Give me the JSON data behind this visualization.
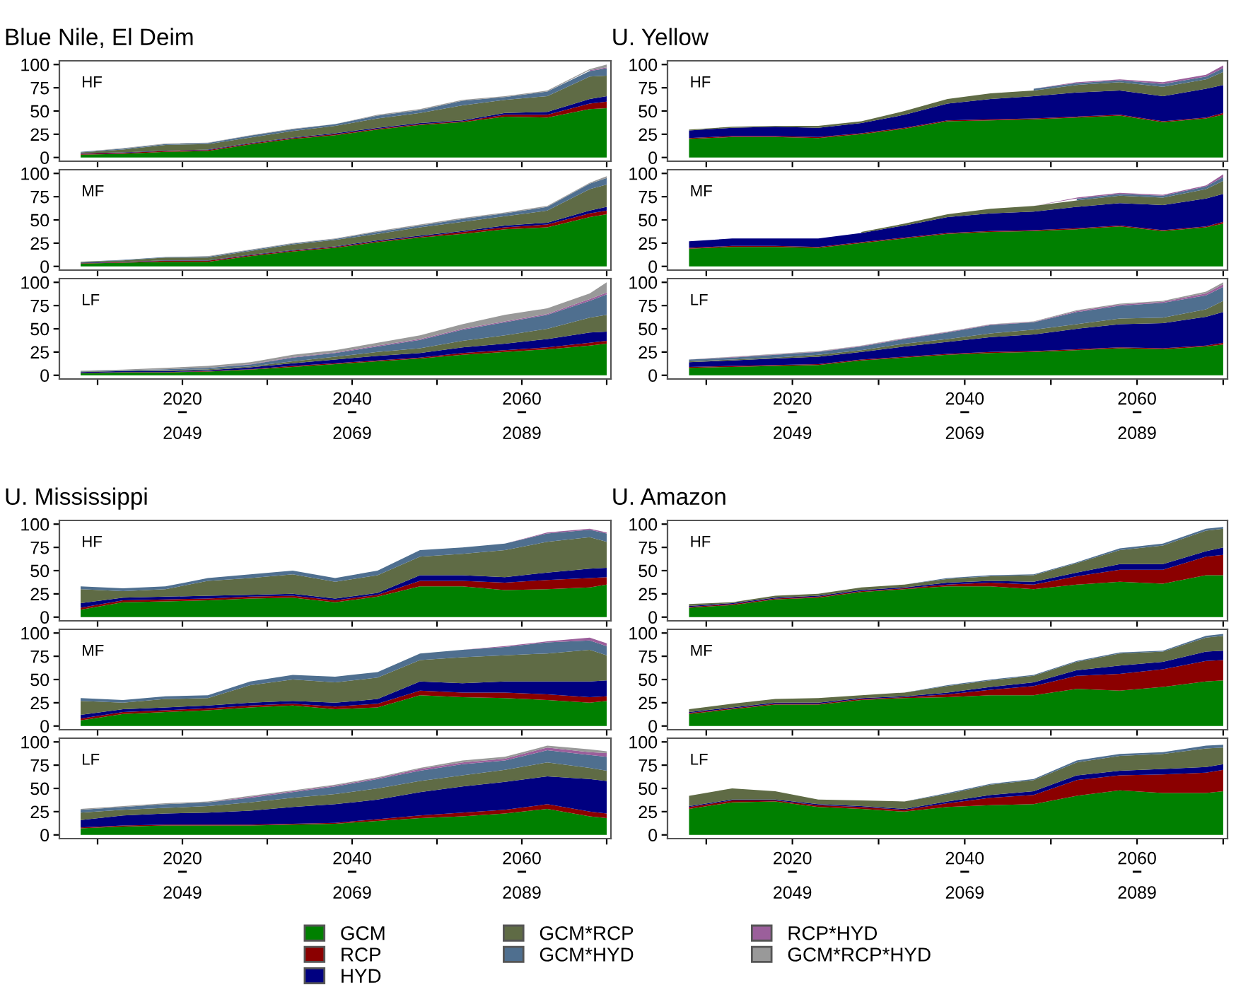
{
  "chart_data": [
    {
      "type": "area",
      "stacked": true,
      "title": "Blue Nile, El Deim",
      "annotations": [
        "HF"
      ],
      "tick_labels": "y",
      "legend": false,
      "xlim": [
        2005.5,
        2070.5
      ],
      "ylim": [
        -4,
        104
      ],
      "yticks": [
        0,
        25,
        50,
        75,
        100
      ],
      "xticks": [
        {
          "value": 2010,
          "label": null
        },
        2020,
        {
          "value": 2030,
          "label": null
        },
        2040,
        {
          "value": 2050,
          "label": null
        },
        2060,
        {
          "value": 2070,
          "label": null
        }
      ],
      "x": [
        2008,
        2013,
        2018,
        2023,
        2028,
        2033,
        2038,
        2043,
        2048,
        2053,
        2058,
        2063,
        2068,
        2070
      ],
      "series": [
        {
          "color": "#008000",
          "values": [
            3,
            4,
            6,
            7,
            14,
            20,
            24,
            30,
            35,
            38,
            44,
            43,
            52,
            53
          ]
        },
        {
          "color": "#8b0000",
          "values": [
            1,
            1,
            1,
            1,
            1,
            1,
            1,
            1,
            1,
            1,
            2,
            3,
            6,
            7
          ]
        },
        {
          "color": "#000080",
          "values": [
            0.5,
            0.5,
            0.5,
            0.5,
            0.5,
            0.5,
            1,
            1,
            1,
            1,
            2,
            3,
            5,
            6
          ]
        },
        {
          "color": "#5f6b45",
          "values": [
            1,
            3,
            6,
            6,
            6,
            7,
            8,
            10,
            11,
            16,
            14,
            17,
            24,
            22
          ]
        },
        {
          "color": "#4f6f8f",
          "values": [
            0.5,
            1,
            1,
            1,
            2,
            2,
            2,
            3,
            3,
            5,
            3,
            5,
            6,
            8
          ]
        },
        {
          "color": "#9b5f9b",
          "values": [
            null,
            null,
            null,
            null,
            null,
            null,
            null,
            null,
            null,
            null,
            null,
            null,
            1,
            1
          ]
        },
        {
          "color": "#999999",
          "values": [
            0,
            0.5,
            0.5,
            0.5,
            0.5,
            0.5,
            0,
            1,
            1,
            1,
            1,
            1,
            1,
            3
          ]
        }
      ]
    },
    {
      "type": "area",
      "stacked": true,
      "annotations": [
        "MF"
      ],
      "tick_labels": "y",
      "legend": false,
      "xlim": [
        2005.5,
        2070.5
      ],
      "ylim": [
        -4,
        104
      ],
      "yticks": [
        0,
        25,
        50,
        75,
        100
      ],
      "xticks": [
        {
          "value": 2010,
          "label": null
        },
        2020,
        {
          "value": 2030,
          "label": null
        },
        2040,
        {
          "value": 2050,
          "label": null
        },
        2060,
        {
          "value": 2070,
          "label": null
        }
      ],
      "x": [
        2008,
        2013,
        2018,
        2023,
        2028,
        2033,
        2038,
        2043,
        2048,
        2053,
        2058,
        2063,
        2068,
        2070
      ],
      "series": [
        {
          "color": "#008000",
          "values": [
            3,
            4,
            5,
            5,
            11,
            16,
            20,
            26,
            31,
            35,
            40,
            42,
            53,
            56
          ]
        },
        {
          "color": "#8b0000",
          "values": [
            0.5,
            0.5,
            1,
            1,
            1,
            1,
            1,
            1,
            1,
            2,
            2,
            3,
            4,
            4
          ]
        },
        {
          "color": "#000080",
          "values": [
            0.5,
            0.5,
            0.5,
            0.5,
            0.5,
            0.5,
            0.5,
            1,
            1,
            1,
            2,
            2,
            3,
            4
          ]
        },
        {
          "color": "#5f6b45",
          "values": [
            1,
            1.5,
            3,
            3,
            4,
            6,
            7,
            7,
            9,
            10,
            10,
            13,
            23,
            24
          ]
        },
        {
          "color": "#4f6f8f",
          "values": [
            0,
            0.5,
            0.5,
            1,
            1,
            1,
            1,
            2,
            2,
            3,
            3,
            4,
            6,
            7
          ]
        },
        {
          "color": "#9b5f9b",
          "values": [
            null,
            null,
            null,
            null,
            null,
            null,
            null,
            null,
            null,
            null,
            null,
            null,
            null,
            null
          ]
        },
        {
          "color": "#999999",
          "values": [
            0,
            0,
            0,
            0.5,
            0.5,
            0.5,
            0.5,
            1,
            1,
            1,
            1,
            1,
            1,
            2
          ]
        }
      ]
    },
    {
      "type": "area",
      "stacked": true,
      "annotations": [
        "LF"
      ],
      "legend": false,
      "xlim": [
        2005.5,
        2070.5
      ],
      "ylim": [
        -4,
        104
      ],
      "yticks": [
        0,
        25,
        50,
        75,
        100
      ],
      "xticks": [
        {
          "value": 2010,
          "label": null
        },
        2020,
        {
          "value": 2030,
          "label": null
        },
        2040,
        {
          "value": 2050,
          "label": null
        },
        2060,
        {
          "value": 2070,
          "label": null
        }
      ],
      "x2lim": [
        2034.5,
        2099.5
      ],
      "x2ticks": [
        2049,
        2069,
        2089
      ],
      "x": [
        2008,
        2013,
        2018,
        2023,
        2028,
        2033,
        2038,
        2043,
        2048,
        2053,
        2058,
        2063,
        2068,
        2070
      ],
      "series": [
        {
          "color": "#008000",
          "values": [
            2,
            3,
            3,
            4,
            6,
            9,
            12,
            15,
            18,
            22,
            25,
            28,
            32,
            34
          ]
        },
        {
          "color": "#8b0000",
          "values": [
            0.5,
            0.5,
            0.5,
            0.5,
            0.5,
            1,
            1,
            1,
            1,
            2,
            2,
            2,
            3,
            3
          ]
        },
        {
          "color": "#000080",
          "values": [
            1,
            1,
            1,
            1,
            2,
            3,
            4,
            5,
            5,
            6,
            7,
            9,
            11,
            10
          ]
        },
        {
          "color": "#5f6b45",
          "values": [
            0.5,
            0.5,
            1,
            1,
            1,
            2,
            3,
            4,
            5,
            7,
            9,
            11,
            16,
            18
          ]
        },
        {
          "color": "#4f6f8f",
          "values": [
            0.5,
            0.5,
            1,
            1.5,
            2,
            4,
            4,
            6,
            9,
            12,
            14,
            15,
            18,
            22
          ]
        },
        {
          "color": "#9b5f9b",
          "values": [
            0,
            0,
            0,
            0,
            0.5,
            0.5,
            0.5,
            1,
            1,
            1,
            1,
            1,
            2,
            2
          ]
        },
        {
          "color": "#999999",
          "values": [
            0.5,
            0.5,
            1.5,
            2,
            2,
            2.5,
            2.5,
            3,
            4,
            5,
            7,
            6,
            6,
            11
          ]
        }
      ]
    },
    {
      "type": "area",
      "stacked": true,
      "title": "U. Yellow",
      "annotations": [
        "HF"
      ],
      "tick_labels": "y",
      "legend": false,
      "xlim": [
        2005.5,
        2070.5
      ],
      "ylim": [
        -4,
        104
      ],
      "yticks": [
        0,
        25,
        50,
        75,
        100
      ],
      "xticks": [
        {
          "value": 2010,
          "label": null
        },
        2020,
        {
          "value": 2030,
          "label": null
        },
        2040,
        {
          "value": 2050,
          "label": null
        },
        2060,
        {
          "value": 2070,
          "label": null
        }
      ],
      "x": [
        2008,
        2013,
        2018,
        2023,
        2028,
        2033,
        2038,
        2043,
        2048,
        2053,
        2058,
        2063,
        2068,
        2070
      ],
      "series": [
        {
          "color": "#008000",
          "values": [
            20,
            22,
            22,
            21,
            25,
            31,
            39,
            40,
            41,
            43,
            45,
            38,
            42,
            46
          ]
        },
        {
          "color": "#8b0000",
          "values": [
            1,
            1,
            1,
            1,
            1,
            1,
            1,
            1,
            1,
            1,
            1,
            1,
            1,
            2
          ]
        },
        {
          "color": "#000080",
          "values": [
            8,
            9,
            10,
            10,
            11,
            14,
            18,
            22,
            24,
            26,
            26,
            27,
            31,
            30
          ]
        },
        {
          "color": "#5f6b45",
          "values": [
            1,
            1,
            1,
            2,
            2,
            4,
            5,
            6,
            6,
            8,
            9,
            10,
            10,
            14
          ]
        },
        {
          "color": "#4f6f8f",
          "values": [
            null,
            null,
            null,
            null,
            null,
            null,
            null,
            null,
            2,
            2,
            2,
            3,
            3,
            4
          ]
        },
        {
          "color": "#9b5f9b",
          "values": [
            0,
            0,
            0,
            0,
            0,
            0,
            0,
            0,
            0,
            1,
            1,
            2,
            2,
            3
          ]
        },
        {
          "color": "#999999",
          "values": [
            null,
            null,
            null,
            null,
            null,
            null,
            null,
            null,
            null,
            null,
            null,
            null,
            null,
            null
          ]
        }
      ]
    },
    {
      "type": "area",
      "stacked": true,
      "annotations": [
        "MF"
      ],
      "tick_labels": "y",
      "legend": false,
      "xlim": [
        2005.5,
        2070.5
      ],
      "ylim": [
        -4,
        104
      ],
      "yticks": [
        0,
        25,
        50,
        75,
        100
      ],
      "xticks": [
        {
          "value": 2010,
          "label": null
        },
        2020,
        {
          "value": 2030,
          "label": null
        },
        2040,
        {
          "value": 2050,
          "label": null
        },
        2060,
        {
          "value": 2070,
          "label": null
        }
      ],
      "x": [
        2008,
        2013,
        2018,
        2023,
        2028,
        2033,
        2038,
        2043,
        2048,
        2053,
        2058,
        2063,
        2068,
        2070
      ],
      "series": [
        {
          "color": "#008000",
          "values": [
            19,
            21,
            21,
            20,
            25,
            30,
            35,
            37,
            38,
            40,
            43,
            38,
            42,
            46
          ]
        },
        {
          "color": "#8b0000",
          "values": [
            1,
            1,
            1,
            1,
            1,
            1,
            1,
            1,
            1,
            1,
            1,
            1,
            1,
            2
          ]
        },
        {
          "color": "#000080",
          "values": [
            7,
            8,
            8,
            9,
            10,
            13,
            17,
            19,
            20,
            23,
            24,
            27,
            30,
            30
          ]
        },
        {
          "color": "#5f6b45",
          "values": [
            null,
            null,
            null,
            null,
            1,
            2,
            3,
            5,
            6,
            7,
            8,
            8,
            10,
            14
          ]
        },
        {
          "color": "#4f6f8f",
          "values": [
            null,
            null,
            null,
            null,
            null,
            null,
            null,
            null,
            null,
            2,
            2,
            2,
            3,
            4
          ]
        },
        {
          "color": "#9b5f9b",
          "values": [
            0,
            0,
            0,
            0,
            0,
            0,
            0,
            0,
            0,
            1,
            1,
            1,
            1,
            3
          ]
        },
        {
          "color": "#999999",
          "values": [
            null,
            null,
            null,
            null,
            null,
            null,
            null,
            null,
            null,
            null,
            null,
            null,
            null,
            null
          ]
        }
      ]
    },
    {
      "type": "area",
      "stacked": true,
      "annotations": [
        "LF"
      ],
      "legend": false,
      "xlim": [
        2005.5,
        2070.5
      ],
      "ylim": [
        -4,
        104
      ],
      "yticks": [
        0,
        25,
        50,
        75,
        100
      ],
      "xticks": [
        {
          "value": 2010,
          "label": null
        },
        2020,
        {
          "value": 2030,
          "label": null
        },
        2040,
        {
          "value": 2050,
          "label": null
        },
        2060,
        {
          "value": 2070,
          "label": null
        }
      ],
      "x2lim": [
        2034.5,
        2099.5
      ],
      "x2ticks": [
        2049,
        2069,
        2089
      ],
      "x": [
        2008,
        2013,
        2018,
        2023,
        2028,
        2033,
        2038,
        2043,
        2048,
        2053,
        2058,
        2063,
        2068,
        2070
      ],
      "series": [
        {
          "color": "#008000",
          "values": [
            8,
            9,
            10,
            11,
            16,
            19,
            22,
            24,
            25,
            27,
            29,
            28,
            31,
            33
          ]
        },
        {
          "color": "#8b0000",
          "values": [
            1,
            1,
            1,
            1,
            1,
            1,
            1,
            1,
            1,
            1,
            1,
            1,
            1,
            2
          ]
        },
        {
          "color": "#000080",
          "values": [
            5,
            6,
            7,
            8,
            8,
            11,
            13,
            16,
            18,
            22,
            25,
            27,
            31,
            33
          ]
        },
        {
          "color": "#5f6b45",
          "values": [
            1,
            1,
            1,
            2,
            2,
            3,
            3,
            4,
            5,
            5,
            6,
            6,
            8,
            12
          ]
        },
        {
          "color": "#4f6f8f",
          "values": [
            2,
            2,
            3,
            3,
            4,
            5,
            7,
            9,
            8,
            13,
            14,
            16,
            15,
            15
          ]
        },
        {
          "color": "#9b5f9b",
          "values": [
            0,
            0.5,
            0.5,
            0.5,
            0.5,
            0.5,
            0.5,
            0.5,
            0.5,
            1,
            1,
            1,
            2,
            3
          ]
        },
        {
          "color": "#999999",
          "values": [
            0,
            0.5,
            0.5,
            0.5,
            0.5,
            0.5,
            0.5,
            0.5,
            0.5,
            1,
            1,
            1,
            2,
            2
          ]
        }
      ]
    },
    {
      "type": "area",
      "stacked": true,
      "title": "U. Mississippi",
      "annotations": [
        "HF"
      ],
      "tick_labels": "y",
      "legend": false,
      "xlim": [
        2005.5,
        2070.5
      ],
      "ylim": [
        -4,
        104
      ],
      "yticks": [
        0,
        25,
        50,
        75,
        100
      ],
      "xticks": [
        {
          "value": 2010,
          "label": null
        },
        2020,
        {
          "value": 2030,
          "label": null
        },
        2040,
        {
          "value": 2050,
          "label": null
        },
        2060,
        {
          "value": 2070,
          "label": null
        }
      ],
      "x": [
        2008,
        2013,
        2018,
        2023,
        2028,
        2033,
        2038,
        2043,
        2048,
        2053,
        2058,
        2063,
        2068,
        2070
      ],
      "series": [
        {
          "color": "#008000",
          "values": [
            8,
            16,
            17,
            18,
            20,
            21,
            16,
            22,
            33,
            33,
            29,
            30,
            32,
            35
          ]
        },
        {
          "color": "#8b0000",
          "values": [
            2,
            2,
            2,
            2,
            2,
            2,
            2,
            2,
            6,
            6,
            8,
            10,
            10,
            8
          ]
        },
        {
          "color": "#000080",
          "values": [
            5,
            3,
            3,
            3,
            2,
            2,
            2,
            2,
            6,
            6,
            6,
            8,
            10,
            10
          ]
        },
        {
          "color": "#5f6b45",
          "values": [
            15,
            7,
            8,
            16,
            18,
            21,
            18,
            19,
            20,
            23,
            29,
            33,
            34,
            28
          ]
        },
        {
          "color": "#4f6f8f",
          "values": [
            3,
            3,
            3,
            3,
            4,
            4,
            4,
            5,
            7,
            7,
            7,
            9,
            8,
            9
          ]
        },
        {
          "color": "#9b5f9b",
          "values": [
            0,
            0,
            0,
            0,
            0,
            0,
            0,
            0,
            0,
            0,
            0,
            1,
            1,
            1
          ]
        },
        {
          "color": "#999999",
          "values": [
            null,
            null,
            null,
            null,
            null,
            null,
            null,
            null,
            null,
            null,
            null,
            null,
            null,
            null
          ]
        }
      ]
    },
    {
      "type": "area",
      "stacked": true,
      "annotations": [
        "MF"
      ],
      "tick_labels": "y",
      "legend": false,
      "xlim": [
        2005.5,
        2070.5
      ],
      "ylim": [
        -4,
        104
      ],
      "yticks": [
        0,
        25,
        50,
        75,
        100
      ],
      "xticks": [
        {
          "value": 2010,
          "label": null
        },
        2020,
        {
          "value": 2030,
          "label": null
        },
        2040,
        {
          "value": 2050,
          "label": null
        },
        2060,
        {
          "value": 2070,
          "label": null
        }
      ],
      "x": [
        2008,
        2013,
        2018,
        2023,
        2028,
        2033,
        2038,
        2043,
        2048,
        2053,
        2058,
        2063,
        2068,
        2070
      ],
      "series": [
        {
          "color": "#008000",
          "values": [
            6,
            13,
            15,
            17,
            20,
            22,
            18,
            20,
            33,
            31,
            30,
            28,
            25,
            27
          ]
        },
        {
          "color": "#8b0000",
          "values": [
            2,
            2,
            2,
            2,
            2,
            2,
            3,
            4,
            5,
            5,
            6,
            6,
            6,
            5
          ]
        },
        {
          "color": "#000080",
          "values": [
            4,
            3,
            3,
            3,
            3,
            3,
            4,
            5,
            10,
            10,
            12,
            14,
            17,
            17
          ]
        },
        {
          "color": "#5f6b45",
          "values": [
            15,
            7,
            9,
            8,
            19,
            23,
            22,
            23,
            23,
            28,
            28,
            30,
            34,
            27
          ]
        },
        {
          "color": "#4f6f8f",
          "values": [
            3,
            3,
            3,
            3,
            4,
            5,
            6,
            6,
            7,
            8,
            9,
            12,
            10,
            10
          ]
        },
        {
          "color": "#9b5f9b",
          "values": [
            0,
            0,
            0,
            0,
            0,
            0,
            0,
            0,
            0,
            0,
            1,
            1,
            3,
            3
          ]
        },
        {
          "color": "#999999",
          "values": [
            null,
            null,
            null,
            null,
            null,
            null,
            null,
            null,
            null,
            null,
            null,
            null,
            null,
            null
          ]
        }
      ]
    },
    {
      "type": "area",
      "stacked": true,
      "annotations": [
        "LF"
      ],
      "legend": false,
      "xlim": [
        2005.5,
        2070.5
      ],
      "ylim": [
        -4,
        104
      ],
      "yticks": [
        0,
        25,
        50,
        75,
        100
      ],
      "xticks": [
        {
          "value": 2010,
          "label": null
        },
        2020,
        {
          "value": 2030,
          "label": null
        },
        2040,
        {
          "value": 2050,
          "label": null
        },
        2060,
        {
          "value": 2070,
          "label": null
        }
      ],
      "x2lim": [
        2034.5,
        2099.5
      ],
      "x2ticks": [
        2049,
        2069,
        2089
      ],
      "x": [
        2008,
        2013,
        2018,
        2023,
        2028,
        2033,
        2038,
        2043,
        2048,
        2053,
        2058,
        2063,
        2068,
        2070
      ],
      "series": [
        {
          "color": "#008000",
          "values": [
            7,
            9,
            10,
            10,
            10,
            11,
            12,
            15,
            18,
            20,
            23,
            28,
            20,
            18
          ]
        },
        {
          "color": "#8b0000",
          "values": [
            1,
            1,
            1,
            1,
            1,
            1,
            1,
            2,
            3,
            4,
            4,
            5,
            5,
            5
          ]
        },
        {
          "color": "#000080",
          "values": [
            8,
            11,
            12,
            13,
            15,
            18,
            20,
            21,
            25,
            28,
            30,
            30,
            35,
            35
          ]
        },
        {
          "color": "#5f6b45",
          "values": [
            8,
            6,
            6,
            7,
            9,
            10,
            11,
            12,
            12,
            12,
            13,
            15,
            12,
            11
          ]
        },
        {
          "color": "#4f6f8f",
          "values": [
            3,
            3,
            4,
            4,
            5,
            6,
            8,
            10,
            11,
            12,
            10,
            13,
            14,
            15
          ]
        },
        {
          "color": "#9b5f9b",
          "values": [
            0,
            0,
            0,
            0,
            1,
            1,
            1,
            1,
            2,
            2,
            2,
            3,
            3,
            4
          ]
        },
        {
          "color": "#999999",
          "values": [
            1,
            1,
            1,
            1,
            1,
            1,
            1,
            1,
            1,
            2,
            2,
            2,
            3,
            2
          ]
        }
      ]
    },
    {
      "type": "area",
      "stacked": true,
      "title": "U. Amazon",
      "annotations": [
        "HF"
      ],
      "tick_labels": "y",
      "legend": false,
      "xlim": [
        2005.5,
        2070.5
      ],
      "ylim": [
        -4,
        104
      ],
      "yticks": [
        0,
        25,
        50,
        75,
        100
      ],
      "xticks": [
        {
          "value": 2010,
          "label": null
        },
        2020,
        {
          "value": 2030,
          "label": null
        },
        2040,
        {
          "value": 2050,
          "label": null
        },
        2060,
        {
          "value": 2070,
          "label": null
        }
      ],
      "x": [
        2008,
        2013,
        2018,
        2023,
        2028,
        2033,
        2038,
        2043,
        2048,
        2053,
        2058,
        2063,
        2068,
        2070
      ],
      "series": [
        {
          "color": "#008000",
          "values": [
            10,
            13,
            19,
            21,
            27,
            30,
            33,
            33,
            30,
            35,
            38,
            36,
            45,
            45
          ]
        },
        {
          "color": "#8b0000",
          "values": [
            1,
            1,
            1,
            1,
            1,
            1,
            2,
            4,
            5,
            9,
            13,
            15,
            20,
            22
          ]
        },
        {
          "color": "#000080",
          "values": [
            1,
            1,
            1,
            1,
            1,
            1,
            2,
            2,
            3,
            4,
            6,
            6,
            6,
            8
          ]
        },
        {
          "color": "#5f6b45",
          "values": [
            2,
            1,
            2,
            2,
            3,
            3,
            4,
            5,
            7,
            10,
            15,
            20,
            22,
            20
          ]
        },
        {
          "color": "#4f6f8f",
          "values": [
            0,
            0,
            0,
            0,
            0,
            0,
            1,
            1,
            1,
            1,
            2,
            2,
            2,
            2
          ]
        },
        {
          "color": "#9b5f9b",
          "values": [
            null,
            null,
            null,
            null,
            null,
            null,
            null,
            null,
            null,
            null,
            null,
            null,
            null,
            null
          ]
        },
        {
          "color": "#999999",
          "values": [
            null,
            null,
            null,
            null,
            null,
            null,
            null,
            null,
            null,
            null,
            null,
            null,
            null,
            null
          ]
        }
      ]
    },
    {
      "type": "area",
      "stacked": true,
      "annotations": [
        "MF"
      ],
      "tick_labels": "y",
      "legend": false,
      "xlim": [
        2005.5,
        2070.5
      ],
      "ylim": [
        -4,
        104
      ],
      "yticks": [
        0,
        25,
        50,
        75,
        100
      ],
      "xticks": [
        {
          "value": 2010,
          "label": null
        },
        2020,
        {
          "value": 2030,
          "label": null
        },
        2040,
        {
          "value": 2050,
          "label": null
        },
        2060,
        {
          "value": 2070,
          "label": null
        }
      ],
      "x": [
        2008,
        2013,
        2018,
        2023,
        2028,
        2033,
        2038,
        2043,
        2048,
        2053,
        2058,
        2063,
        2068,
        2070
      ],
      "series": [
        {
          "color": "#008000",
          "values": [
            13,
            18,
            23,
            23,
            28,
            30,
            31,
            33,
            33,
            40,
            38,
            42,
            48,
            49
          ]
        },
        {
          "color": "#8b0000",
          "values": [
            1,
            1,
            1,
            1,
            1,
            1,
            3,
            6,
            10,
            14,
            18,
            19,
            22,
            22
          ]
        },
        {
          "color": "#000080",
          "values": [
            1,
            1,
            1,
            1,
            1,
            1,
            2,
            3,
            4,
            6,
            9,
            8,
            10,
            10
          ]
        },
        {
          "color": "#5f6b45",
          "values": [
            3,
            4,
            4,
            5,
            3,
            4,
            7,
            7,
            7,
            9,
            13,
            11,
            15,
            16
          ]
        },
        {
          "color": "#4f6f8f",
          "values": [
            0,
            0,
            0,
            0,
            0,
            0,
            1,
            1,
            1,
            1,
            1,
            1,
            2,
            2
          ]
        },
        {
          "color": "#9b5f9b",
          "values": [
            null,
            null,
            null,
            null,
            null,
            null,
            null,
            null,
            null,
            null,
            null,
            null,
            null,
            null
          ]
        },
        {
          "color": "#999999",
          "values": [
            null,
            null,
            null,
            null,
            null,
            null,
            null,
            null,
            null,
            null,
            null,
            null,
            null,
            null
          ]
        }
      ]
    },
    {
      "type": "area",
      "stacked": true,
      "annotations": [
        "LF"
      ],
      "legend": "bottom",
      "xlim": [
        2005.5,
        2070.5
      ],
      "ylim": [
        -4,
        104
      ],
      "yticks": [
        0,
        25,
        50,
        75,
        100
      ],
      "xticks": [
        {
          "value": 2010,
          "label": null
        },
        2020,
        {
          "value": 2030,
          "label": null
        },
        2040,
        {
          "value": 2050,
          "label": null
        },
        2060,
        {
          "value": 2070,
          "label": null
        }
      ],
      "x2lim": [
        2034.5,
        2099.5
      ],
      "x2ticks": [
        2049,
        2069,
        2089
      ],
      "x": [
        2008,
        2013,
        2018,
        2023,
        2028,
        2033,
        2038,
        2043,
        2048,
        2053,
        2058,
        2063,
        2068,
        2070
      ],
      "series": [
        {
          "name": "GCM",
          "color": "#008000",
          "values": [
            28,
            35,
            36,
            30,
            28,
            25,
            30,
            32,
            33,
            42,
            48,
            45,
            45,
            47
          ]
        },
        {
          "name": "RCP",
          "color": "#8b0000",
          "values": [
            2,
            2,
            1,
            2,
            2,
            2,
            4,
            8,
            10,
            17,
            16,
            20,
            22,
            23
          ]
        },
        {
          "name": "HYD",
          "color": "#000080",
          "values": [
            1,
            1,
            1,
            1,
            1,
            1,
            2,
            3,
            4,
            5,
            5,
            6,
            6,
            6
          ]
        },
        {
          "name": "GCM*RCP",
          "color": "#5f6b45",
          "values": [
            11,
            12,
            9,
            5,
            6,
            8,
            8,
            11,
            12,
            14,
            16,
            16,
            20,
            18
          ]
        },
        {
          "name": "GCM*HYD",
          "color": "#4f6f8f",
          "values": [
            0,
            0,
            0,
            0,
            0,
            0,
            1,
            1,
            1,
            2,
            2,
            2,
            3,
            3
          ]
        },
        {
          "name": "RCP*HYD",
          "color": "#9b5f9b",
          "values": [
            null,
            null,
            null,
            null,
            null,
            null,
            null,
            null,
            null,
            null,
            null,
            null,
            null,
            null
          ]
        },
        {
          "name": "GCM*RCP*HYD",
          "color": "#999999",
          "values": [
            null,
            null,
            null,
            null,
            null,
            null,
            null,
            null,
            null,
            null,
            null,
            null,
            null,
            null
          ]
        }
      ]
    }
  ]
}
